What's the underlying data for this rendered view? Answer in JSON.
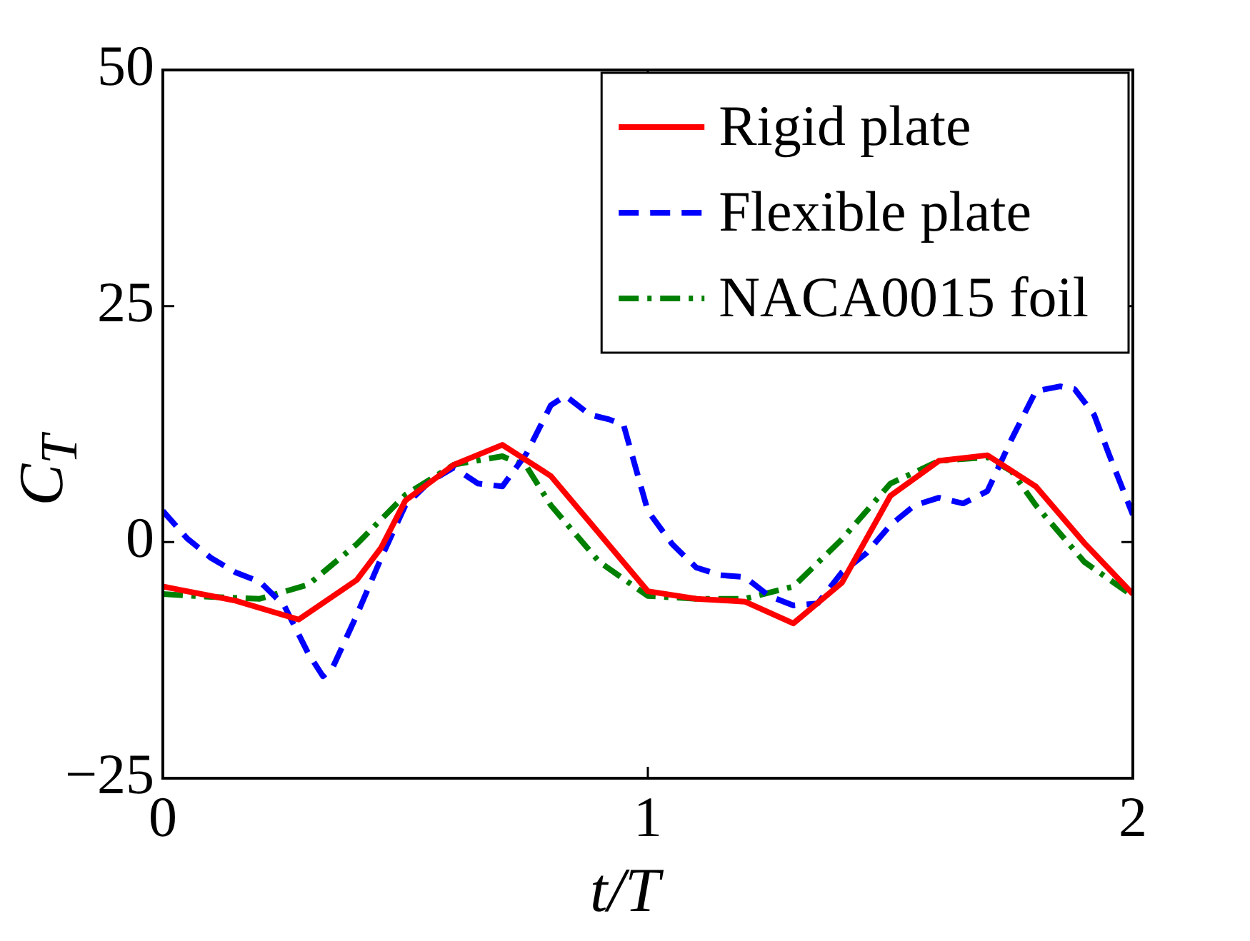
{
  "chart_data": {
    "type": "line",
    "xlabel": "t/T",
    "ylabel": "C$_{T}$",
    "xlim": [
      0,
      2
    ],
    "xticks": [
      0,
      1,
      2
    ],
    "ylim": [
      -25,
      50
    ],
    "yticks": [
      {
        "value": -25,
        "label": "−25"
      },
      0,
      25,
      50
    ],
    "grid": false,
    "legend": "top right",
    "marker": "none",
    "series": [
      {
        "name": "Rigid plate",
        "color": "#ff0000",
        "line_style": "solid",
        "x": [
          0,
          0.15,
          0.28,
          0.4,
          0.45,
          0.5,
          0.6,
          0.7,
          0.8,
          0.9,
          1.0,
          1.1,
          1.2,
          1.3,
          1.4,
          1.5,
          1.6,
          1.7,
          1.8,
          1.9,
          2.0
        ],
        "values": [
          -4.7,
          -6.2,
          -8.2,
          -4,
          -0.6,
          4.4,
          8.2,
          10.3,
          7,
          0.9,
          -5.2,
          -6,
          -6.3,
          -8.6,
          -4.3,
          4.9,
          8.6,
          9.2,
          5.9,
          -0.1,
          -5.5
        ]
      },
      {
        "name": "Flexible plate",
        "color": "#0000ff",
        "line_style": "dashed",
        "x": [
          0,
          0.05,
          0.1,
          0.15,
          0.2,
          0.25,
          0.3,
          0.33,
          0.35,
          0.4,
          0.45,
          0.5,
          0.55,
          0.6,
          0.65,
          0.7,
          0.75,
          0.8,
          0.83,
          0.88,
          0.92,
          0.95,
          1.0,
          1.05,
          1.1,
          1.15,
          1.2,
          1.25,
          1.3,
          1.35,
          1.4,
          1.45,
          1.5,
          1.55,
          1.6,
          1.65,
          1.7,
          1.75,
          1.8,
          1.85,
          1.88,
          1.92,
          1.95,
          2.0
        ],
        "values": [
          3.3,
          0.4,
          -1.7,
          -3.2,
          -4.2,
          -6.7,
          -11.8,
          -14.2,
          -13.3,
          -7.7,
          -1.7,
          3.9,
          6.4,
          7.9,
          6.2,
          5.9,
          9.4,
          14.5,
          15.5,
          13.5,
          13,
          12.4,
          3.3,
          -0.2,
          -2.7,
          -3.5,
          -3.7,
          -5.7,
          -6.7,
          -6.5,
          -3.2,
          -1.2,
          1.8,
          3.9,
          4.7,
          4.1,
          5.4,
          10.9,
          16,
          16.5,
          16.2,
          13.5,
          9.4,
          2.9
        ]
      },
      {
        "name": "NACA0015 foil",
        "color": "#008000",
        "line_style": "dashdot",
        "x": [
          0,
          0.1,
          0.2,
          0.3,
          0.4,
          0.5,
          0.6,
          0.7,
          0.75,
          0.8,
          0.9,
          1.0,
          1.1,
          1.2,
          1.3,
          1.4,
          1.5,
          1.6,
          1.7,
          1.75,
          1.8,
          1.9,
          2.0
        ],
        "values": [
          -5.5,
          -5.8,
          -6,
          -4.5,
          -0.2,
          5,
          8.2,
          9.1,
          8,
          3.9,
          -2.1,
          -5.7,
          -6,
          -6,
          -4.7,
          0.3,
          6.2,
          8.6,
          9,
          7.5,
          3.9,
          -2.1,
          -5.7
        ]
      }
    ]
  }
}
